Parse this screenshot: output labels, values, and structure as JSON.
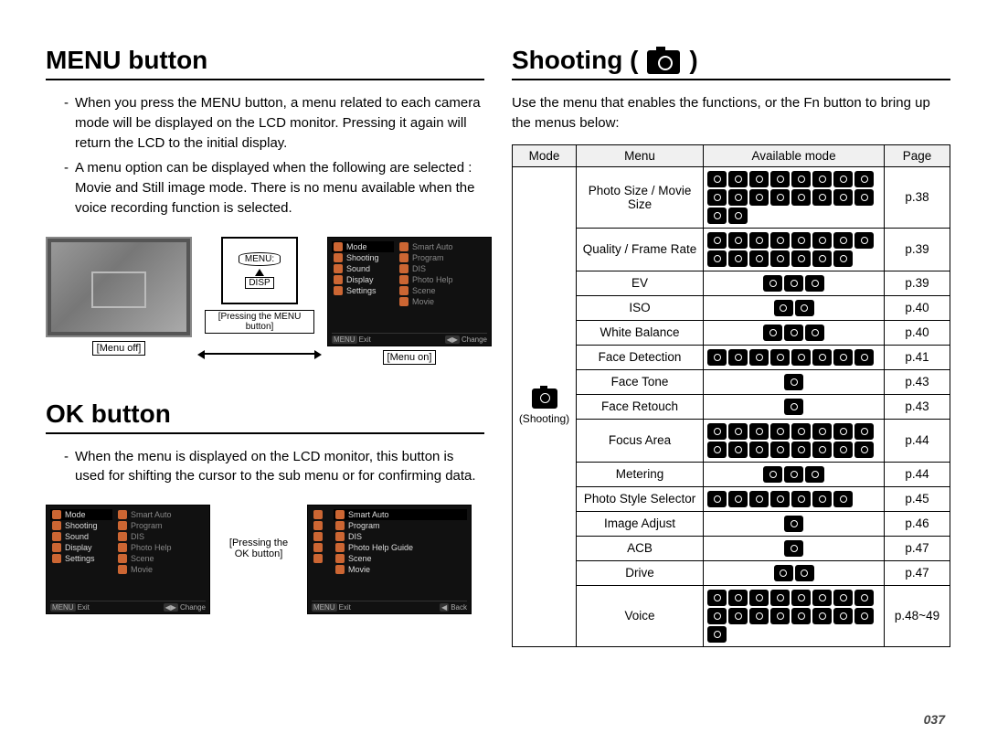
{
  "page_number": "037",
  "left": {
    "menu_button": {
      "title": "MENU button",
      "paras": [
        "When you press the MENU button, a menu related to each camera mode will be displayed on the LCD monitor. Pressing it again will return the LCD to the initial display.",
        "A menu option can be displayed when the following are selected : Movie and Still image mode. There is no menu available when the voice recording function is selected."
      ],
      "captions": {
        "menu_off": "[Menu off]",
        "pressing": "[Pressing the MENU button]",
        "menu_on": "[Menu on]"
      },
      "panel_left_items": [
        "Mode",
        "Shooting",
        "Sound",
        "Display",
        "Settings"
      ],
      "panel_right_items": [
        "Smart Auto",
        "Program",
        "DIS",
        "Photo Help",
        "Scene",
        "Movie"
      ],
      "panel_foot_left": "Exit",
      "panel_foot_right": "Change"
    },
    "ok_button": {
      "title": "OK button",
      "paras": [
        "When the menu is displayed on the LCD monitor, this button is used for shifting the cursor to the sub menu or for confirming data."
      ],
      "middle_label": "[Pressing the OK button]",
      "panel2_right_items": [
        "Smart Auto",
        "Program",
        "DIS",
        "Photo Help Guide",
        "Scene",
        "Movie"
      ],
      "panel2_foot_left": "Exit",
      "panel2_foot_right": "Back"
    }
  },
  "right": {
    "title": "Shooting (",
    "title_suffix": ")",
    "intro": "Use the menu that enables the functions, or the Fn button to bring up the menus below:",
    "mode_label": "(Shooting)",
    "headers": {
      "mode": "Mode",
      "menu": "Menu",
      "available": "Available mode",
      "page": "Page"
    },
    "rows": [
      {
        "menu": "Photo Size / Movie Size",
        "page": "p.38",
        "modes": 18
      },
      {
        "menu": "Quality / Frame Rate",
        "page": "p.39",
        "modes": 15
      },
      {
        "menu": "EV",
        "page": "p.39",
        "modes": 3
      },
      {
        "menu": "ISO",
        "page": "p.40",
        "modes": 2
      },
      {
        "menu": "White Balance",
        "page": "p.40",
        "modes": 3
      },
      {
        "menu": "Face Detection",
        "page": "p.41",
        "modes": 8
      },
      {
        "menu": "Face Tone",
        "page": "p.43",
        "modes": 1
      },
      {
        "menu": "Face Retouch",
        "page": "p.43",
        "modes": 1
      },
      {
        "menu": "Focus Area",
        "page": "p.44",
        "modes": 16
      },
      {
        "menu": "Metering",
        "page": "p.44",
        "modes": 3
      },
      {
        "menu": "Photo Style Selector",
        "page": "p.45",
        "modes": 7
      },
      {
        "menu": "Image Adjust",
        "page": "p.46",
        "modes": 1
      },
      {
        "menu": "ACB",
        "page": "p.47",
        "modes": 1
      },
      {
        "menu": "Drive",
        "page": "p.47",
        "modes": 2
      },
      {
        "menu": "Voice",
        "page": "p.48~49",
        "modes": 17
      }
    ]
  }
}
